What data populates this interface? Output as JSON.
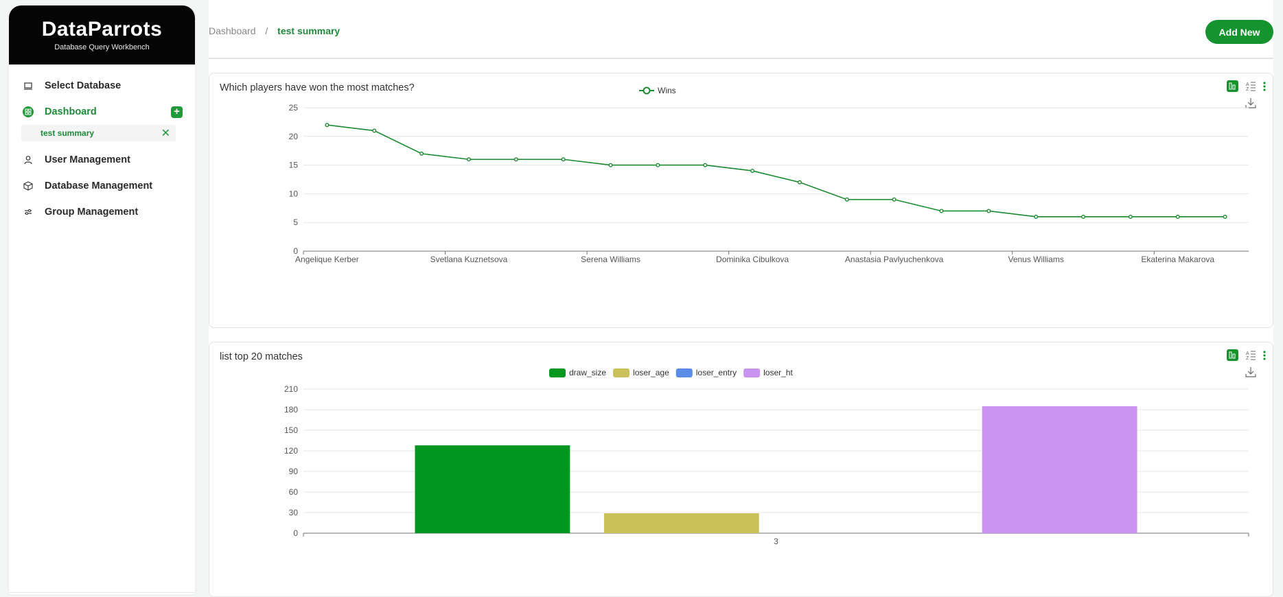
{
  "brand": {
    "name": "DataParrots",
    "subtitle": "Database Query Workbench"
  },
  "sidebar": {
    "items": [
      {
        "label": "Select Database",
        "icon": "database-select-icon"
      },
      {
        "label": "Dashboard",
        "icon": "dashboard-icon",
        "active": true
      },
      {
        "label": "User Management",
        "icon": "user-icon"
      },
      {
        "label": "Database Management",
        "icon": "cube-icon"
      },
      {
        "label": "Group Management",
        "icon": "group-icon"
      }
    ],
    "sub_items": [
      {
        "label": "test summary"
      }
    ]
  },
  "breadcrumb": {
    "items": [
      "Dashboard",
      "test summary"
    ],
    "separator": "/"
  },
  "header": {
    "add_label": "Add New"
  },
  "colors": {
    "accent": "#14932f",
    "line": "#1a8a2e"
  },
  "cards": [
    {
      "title": "Which players have won the most matches?",
      "chart_data": {
        "type": "line",
        "series": [
          {
            "name": "Wins",
            "values": [
              22,
              21,
              17,
              16,
              16,
              16,
              15,
              15,
              15,
              14,
              12,
              9,
              9,
              7,
              7,
              6,
              6,
              6,
              6,
              6
            ]
          }
        ],
        "tick_labels": [
          "Angelique Kerber",
          "Svetlana Kuznetsova",
          "Serena Williams",
          "Dominika Cibulkova",
          "Anastasia Pavlyuchenkova",
          "Venus Williams",
          "Ekaterina Makarova"
        ],
        "yticks": [
          0,
          5,
          10,
          15,
          20,
          25
        ],
        "ylim": [
          0,
          25
        ],
        "grid": true,
        "legend": "top-center"
      }
    },
    {
      "title": "list top 20 matches",
      "chart_data": {
        "type": "bar",
        "categories": [
          "3"
        ],
        "series": [
          {
            "name": "draw_size",
            "values": [
              128
            ],
            "color": "#00961f"
          },
          {
            "name": "loser_age",
            "values": [
              29
            ],
            "color": "#cbc15b"
          },
          {
            "name": "loser_entry",
            "values": [
              0
            ],
            "color": "#5b8ce8"
          },
          {
            "name": "loser_ht",
            "values": [
              185
            ],
            "color": "#c894f0"
          }
        ],
        "yticks": [
          0,
          30,
          60,
          90,
          120,
          150,
          180,
          210
        ],
        "ylim": [
          0,
          210
        ],
        "grid": true,
        "legend": "top-center"
      }
    }
  ]
}
